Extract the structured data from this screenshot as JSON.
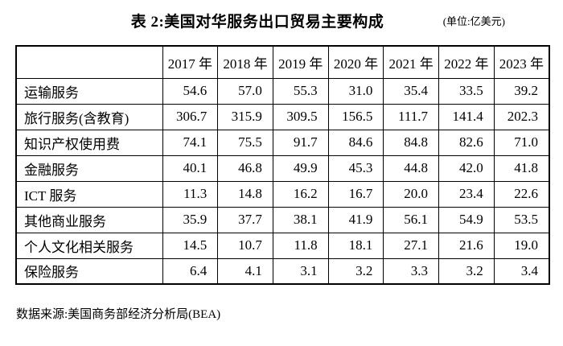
{
  "title": "表 2:美国对华服务出口贸易主要构成",
  "unit": "(单位:亿美元)",
  "source": "数据来源:美国商务部经济分析局(BEA)",
  "table": {
    "col_headers": [
      "",
      "2017 年",
      "2018 年",
      "2019 年",
      "2020 年",
      "2021 年",
      "2022 年",
      "2023 年"
    ],
    "rows": [
      {
        "label": "运输服务",
        "values": [
          "54.6",
          "57.0",
          "55.3",
          "31.0",
          "35.4",
          "33.5",
          "39.2"
        ]
      },
      {
        "label": "旅行服务(含教育)",
        "values": [
          "306.7",
          "315.9",
          "309.5",
          "156.5",
          "111.7",
          "141.4",
          "202.3"
        ]
      },
      {
        "label": "知识产权使用费",
        "values": [
          "74.1",
          "75.5",
          "91.7",
          "84.6",
          "84.8",
          "82.6",
          "71.0"
        ]
      },
      {
        "label": "金融服务",
        "values": [
          "40.1",
          "46.8",
          "49.9",
          "45.3",
          "44.8",
          "42.0",
          "41.8"
        ]
      },
      {
        "label": "ICT 服务",
        "values": [
          "11.3",
          "14.8",
          "16.2",
          "16.7",
          "20.0",
          "23.4",
          "22.6"
        ]
      },
      {
        "label": "其他商业服务",
        "values": [
          "35.9",
          "37.7",
          "38.1",
          "41.9",
          "56.1",
          "54.9",
          "53.5"
        ]
      },
      {
        "label": "个人文化相关服务",
        "values": [
          "14.5",
          "10.7",
          "11.8",
          "18.1",
          "27.1",
          "21.6",
          "19.0"
        ]
      },
      {
        "label": "保险服务",
        "values": [
          "6.4",
          "4.1",
          "3.1",
          "3.2",
          "3.3",
          "3.2",
          "3.4"
        ]
      }
    ]
  }
}
